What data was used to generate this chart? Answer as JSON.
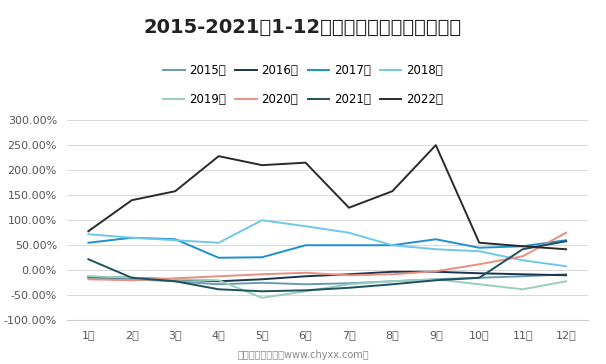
{
  "title": "2015-2021年1-12月中国醋酸价格增长率走势",
  "x_labels": [
    "1月",
    "2月",
    "3月",
    "4月",
    "5月",
    "6月",
    "7月",
    "8月",
    "9月",
    "10月",
    "11月",
    "12月"
  ],
  "series": [
    {
      "name": "2015年",
      "color": "#6a9ab0",
      "values": [
        -15,
        -18,
        -22,
        -28,
        -25,
        -28,
        -26,
        -22,
        -18,
        -15,
        -12,
        -8
      ]
    },
    {
      "name": "2016年",
      "color": "#1a3550",
      "values": [
        -13,
        -15,
        -18,
        -22,
        -18,
        -12,
        -8,
        -3,
        -3,
        -6,
        -8,
        -10
      ]
    },
    {
      "name": "2017年",
      "color": "#1e90d0",
      "values": [
        55,
        65,
        62,
        25,
        26,
        50,
        50,
        50,
        62,
        45,
        48,
        60
      ]
    },
    {
      "name": "2018年",
      "color": "#70c8e8",
      "values": [
        72,
        65,
        60,
        55,
        100,
        88,
        75,
        50,
        42,
        38,
        20,
        8
      ]
    },
    {
      "name": "2019年",
      "color": "#98cfc0",
      "values": [
        -12,
        -15,
        -18,
        -20,
        -55,
        -42,
        -28,
        -22,
        -18,
        -28,
        -38,
        -22
      ]
    },
    {
      "name": "2020年",
      "color": "#e89080",
      "values": [
        -18,
        -20,
        -16,
        -12,
        -8,
        -5,
        -10,
        -8,
        -2,
        12,
        28,
        75
      ]
    },
    {
      "name": "2021年",
      "color": "#1e5060",
      "values": [
        22,
        -15,
        -22,
        -38,
        -42,
        -40,
        -35,
        -28,
        -20,
        -15,
        42,
        58
      ]
    },
    {
      "name": "2022年",
      "color": "#2a2a2a",
      "values": [
        78,
        140,
        158,
        228,
        210,
        215,
        125,
        158,
        250,
        55,
        48,
        42
      ]
    }
  ],
  "ylim": [
    -100,
    300
  ],
  "yticks": [
    -100,
    -50,
    0,
    50,
    100,
    150,
    200,
    250,
    300
  ],
  "background_color": "#ffffff",
  "grid_color": "#d8d8d8",
  "footer": "制图：智研咨询（www.chyxx.com）",
  "title_fontsize": 14,
  "tick_fontsize": 8,
  "legend_fontsize": 8.5
}
